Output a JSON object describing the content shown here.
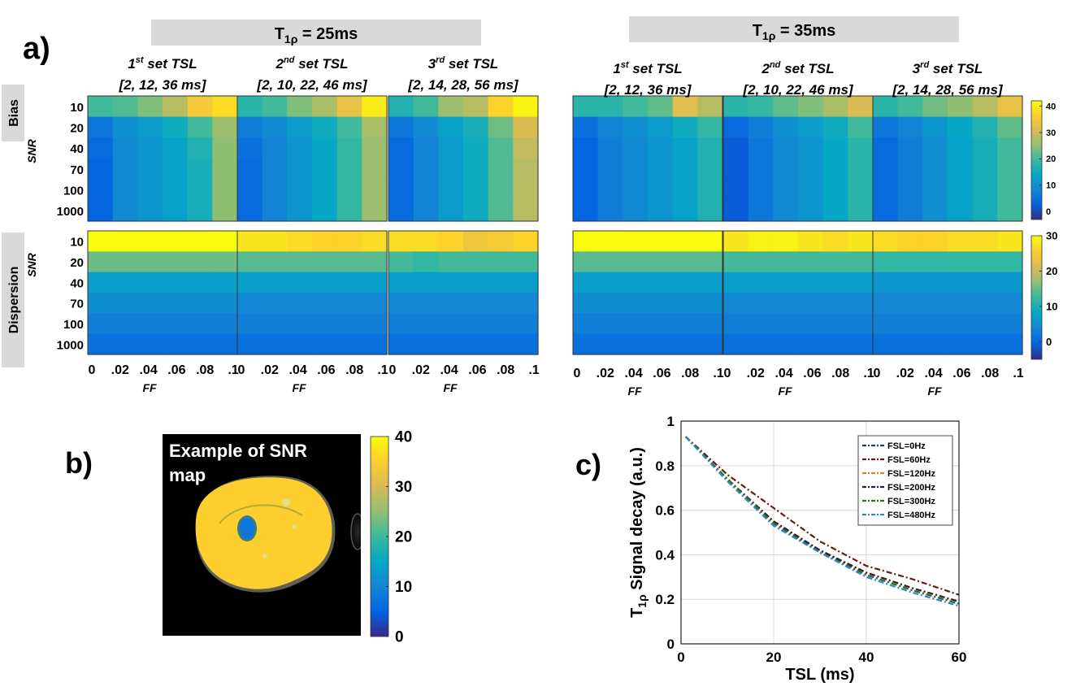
{
  "panel_labels": {
    "a": "a)",
    "b": "b)",
    "c": "c)"
  },
  "group_titles": {
    "left": {
      "prefix": "T",
      "sub": "1ρ",
      "suffix": " = 25ms"
    },
    "right": {
      "prefix": "T",
      "sub": "1ρ",
      "suffix": " = 35ms"
    }
  },
  "set_labels": [
    {
      "n": "1",
      "sup": "st",
      "rest": " set TSL",
      "tsl": "[2, 12, 36 ms]"
    },
    {
      "n": "2",
      "sup": "nd",
      "rest": " set TSL",
      "tsl": "[2, 10, 22, 46 ms]"
    },
    {
      "n": "3",
      "sup": "rd",
      "rest": " set TSL",
      "tsl": "[2, 14, 28, 56 ms]"
    }
  ],
  "row_labels": {
    "bias": "Bias",
    "dispersion": "Dispersion"
  },
  "snr_axis_label": "SNR",
  "ff_axis_label": "FF",
  "snr_ticks": [
    "10",
    "20",
    "40",
    "70",
    "100",
    "1000"
  ],
  "ff_ticks": [
    "0",
    ".02",
    ".04",
    ".06",
    ".08",
    ".1"
  ],
  "colorbars": {
    "bias": {
      "min": -3,
      "max": 42,
      "ticks": [
        "40",
        "30",
        "20",
        "10",
        "0"
      ]
    },
    "dispersion": {
      "min": -5,
      "max": 30,
      "ticks": [
        "30",
        "20",
        "10",
        "0"
      ]
    },
    "snr_map": {
      "min": 0,
      "max": 40,
      "ticks": [
        "40",
        "30",
        "20",
        "10",
        "0"
      ]
    }
  },
  "snr_map": {
    "title": "Example of SNR map",
    "uniform_snr_value": 35,
    "lesion_snr_value": 8
  },
  "colors": {
    "parula": [
      "#352a87",
      "#0363e1",
      "#1485d4",
      "#06a7c6",
      "#38b99e",
      "#92bf73",
      "#d9ba56",
      "#fcce2e",
      "#f9fb0e"
    ],
    "group_title_bg": "#d9d9d9",
    "row_label_bg": "#d9d9d9"
  },
  "chart_data": [
    {
      "type": "heatmap",
      "title": "Bias, T1ρ = 25ms",
      "x": [
        0,
        0.02,
        0.04,
        0.06,
        0.08,
        0.1
      ],
      "y": [
        10,
        20,
        40,
        70,
        100,
        1000
      ],
      "xlabel": "FF",
      "ylabel": "SNR",
      "sets": [
        [
          [
            20,
            21,
            24,
            28,
            35,
            38
          ],
          [
            6,
            10,
            12,
            15,
            20,
            26
          ],
          [
            4,
            9,
            11,
            13,
            17,
            25
          ],
          [
            3,
            9,
            11,
            13,
            16,
            25
          ],
          [
            3,
            9,
            11,
            13,
            16,
            25
          ],
          [
            3,
            9,
            11,
            13,
            16,
            25
          ]
        ],
        [
          [
            18,
            20,
            24,
            27,
            33,
            40
          ],
          [
            7,
            9,
            12,
            15,
            20,
            27
          ],
          [
            5,
            8,
            11,
            14,
            19,
            26
          ],
          [
            4,
            8,
            11,
            14,
            19,
            26
          ],
          [
            4,
            8,
            11,
            14,
            19,
            26
          ],
          [
            4,
            8,
            11,
            14,
            19,
            26
          ]
        ],
        [
          [
            17,
            20,
            26,
            28,
            37,
            41
          ],
          [
            6,
            9,
            13,
            16,
            23,
            31
          ],
          [
            4,
            8,
            12,
            15,
            21,
            29
          ],
          [
            4,
            8,
            12,
            15,
            21,
            28
          ],
          [
            4,
            8,
            12,
            15,
            21,
            28
          ],
          [
            4,
            8,
            12,
            15,
            21,
            28
          ]
        ]
      ]
    },
    {
      "type": "heatmap",
      "title": "Bias, T1ρ = 35ms",
      "x": [
        0,
        0.02,
        0.04,
        0.06,
        0.08,
        0.1
      ],
      "y": [
        10,
        20,
        40,
        70,
        100,
        1000
      ],
      "xlabel": "FF",
      "ylabel": "SNR",
      "sets": [
        [
          [
            18,
            18,
            20,
            22,
            32,
            28
          ],
          [
            5,
            8,
            10,
            12,
            15,
            19
          ],
          [
            3,
            7,
            9,
            11,
            13,
            17
          ],
          [
            3,
            7,
            9,
            11,
            13,
            17
          ],
          [
            3,
            7,
            9,
            11,
            13,
            17
          ],
          [
            3,
            7,
            9,
            11,
            13,
            17
          ]
        ],
        [
          [
            18,
            19,
            22,
            24,
            27,
            31
          ],
          [
            4,
            7,
            10,
            12,
            15,
            20
          ],
          [
            2,
            6,
            9,
            11,
            14,
            18
          ],
          [
            2,
            6,
            9,
            11,
            14,
            18
          ],
          [
            2,
            6,
            9,
            11,
            14,
            18
          ],
          [
            2,
            6,
            9,
            11,
            14,
            18
          ]
        ],
        [
          [
            18,
            20,
            23,
            25,
            28,
            33
          ],
          [
            6,
            8,
            11,
            14,
            17,
            22
          ],
          [
            4,
            7,
            10,
            13,
            16,
            20
          ],
          [
            4,
            7,
            10,
            13,
            16,
            20
          ],
          [
            4,
            7,
            10,
            13,
            16,
            20
          ],
          [
            4,
            7,
            10,
            13,
            16,
            20
          ]
        ]
      ]
    },
    {
      "type": "heatmap",
      "title": "Dispersion, T1ρ = 25ms",
      "x": [
        0,
        0.02,
        0.04,
        0.06,
        0.08,
        0.1
      ],
      "y": [
        10,
        20,
        40,
        70,
        100,
        1000
      ],
      "xlabel": "FF",
      "ylabel": "SNR",
      "sets": [
        [
          [
            30,
            30,
            30,
            30,
            30,
            30
          ],
          [
            15,
            15,
            15,
            15,
            15,
            15
          ],
          [
            7,
            7,
            7,
            7,
            7,
            7
          ],
          [
            5,
            5,
            5,
            5,
            5,
            5
          ],
          [
            3,
            3,
            3,
            3,
            3,
            3
          ],
          [
            1,
            1,
            1,
            1,
            1,
            1
          ]
        ],
        [
          [
            28,
            28,
            27,
            26,
            26,
            27
          ],
          [
            14,
            14,
            14,
            14,
            14,
            14
          ],
          [
            7,
            7,
            7,
            7,
            7,
            7
          ],
          [
            4,
            4,
            4,
            4,
            4,
            4
          ],
          [
            3,
            3,
            3,
            3,
            3,
            3
          ],
          [
            1,
            1,
            1,
            1,
            1,
            1
          ]
        ],
        [
          [
            27,
            27,
            26,
            24,
            25,
            26
          ],
          [
            13,
            12,
            13,
            13,
            13,
            13
          ],
          [
            7,
            7,
            7,
            7,
            7,
            7
          ],
          [
            4,
            4,
            4,
            4,
            4,
            4
          ],
          [
            3,
            3,
            3,
            3,
            3,
            3
          ],
          [
            1,
            1,
            1,
            1,
            1,
            1
          ]
        ]
      ]
    },
    {
      "type": "heatmap",
      "title": "Dispersion, T1ρ = 35ms",
      "x": [
        0,
        0.02,
        0.04,
        0.06,
        0.08,
        0.1
      ],
      "y": [
        10,
        20,
        40,
        70,
        100,
        1000
      ],
      "xlabel": "FF",
      "ylabel": "SNR",
      "sets": [
        [
          [
            30,
            30,
            30,
            30,
            30,
            30
          ],
          [
            14,
            14,
            14,
            14,
            14,
            14
          ],
          [
            7,
            7,
            7,
            7,
            7,
            7
          ],
          [
            5,
            5,
            5,
            5,
            5,
            5
          ],
          [
            3,
            3,
            3,
            3,
            3,
            3
          ],
          [
            1,
            1,
            1,
            1,
            1,
            1
          ]
        ],
        [
          [
            28,
            29,
            29,
            28,
            27,
            28
          ],
          [
            13,
            13,
            13,
            13,
            13,
            13
          ],
          [
            7,
            7,
            7,
            7,
            7,
            7
          ],
          [
            4,
            4,
            4,
            4,
            4,
            4
          ],
          [
            3,
            3,
            3,
            3,
            3,
            3
          ],
          [
            1,
            1,
            1,
            1,
            1,
            1
          ]
        ],
        [
          [
            27,
            26,
            26,
            27,
            27,
            28
          ],
          [
            12,
            12,
            12,
            12,
            12,
            12
          ],
          [
            6,
            6,
            6,
            6,
            6,
            6
          ],
          [
            4,
            4,
            4,
            4,
            4,
            4
          ],
          [
            3,
            3,
            3,
            3,
            3,
            3
          ],
          [
            1,
            1,
            1,
            1,
            1,
            1
          ]
        ]
      ]
    },
    {
      "type": "line",
      "xlabel": "TSL (ms)",
      "ylabel_prefix": "T",
      "ylabel_sub": "1ρ",
      "ylabel_suffix": " Signal decay (a.u.)",
      "xlim": [
        0,
        60
      ],
      "ylim": [
        0,
        1
      ],
      "xticks": [
        0,
        20,
        40,
        60
      ],
      "yticks": [
        0,
        0.2,
        0.4,
        0.6,
        0.8,
        1
      ],
      "ytick_labels": [
        "0",
        "0.2",
        "0.4",
        "0.6",
        "0.8",
        "1"
      ],
      "grid": true,
      "legend_position": "top-right",
      "series": [
        {
          "name": "FSL=0Hz",
          "color": "#1f3b5a",
          "x": [
            1,
            10,
            20,
            30,
            40,
            50,
            60
          ],
          "y": [
            0.93,
            0.74,
            0.54,
            0.42,
            0.31,
            0.24,
            0.18
          ]
        },
        {
          "name": "FSL=60Hz",
          "color": "#5a1f14",
          "x": [
            1,
            10,
            20,
            30,
            40,
            50,
            60
          ],
          "y": [
            0.93,
            0.76,
            0.61,
            0.46,
            0.35,
            0.29,
            0.22
          ]
        },
        {
          "name": "FSL=120Hz",
          "color": "#c98a1f",
          "x": [
            1,
            10,
            20,
            30,
            40,
            50,
            60
          ],
          "y": [
            0.93,
            0.74,
            0.55,
            0.42,
            0.32,
            0.25,
            0.19
          ]
        },
        {
          "name": "FSL=200Hz",
          "color": "#2a1f3b",
          "x": [
            1,
            10,
            20,
            30,
            40,
            50,
            60
          ],
          "y": [
            0.93,
            0.74,
            0.55,
            0.42,
            0.32,
            0.25,
            0.19
          ]
        },
        {
          "name": "FSL=300Hz",
          "color": "#3b6b1f",
          "x": [
            1,
            10,
            20,
            30,
            40,
            50,
            60
          ],
          "y": [
            0.93,
            0.74,
            0.54,
            0.41,
            0.31,
            0.24,
            0.18
          ]
        },
        {
          "name": "FSL=480Hz",
          "color": "#2a86c8",
          "x": [
            1,
            10,
            20,
            30,
            40,
            50,
            60
          ],
          "y": [
            0.93,
            0.73,
            0.53,
            0.41,
            0.3,
            0.23,
            0.17
          ]
        }
      ]
    }
  ]
}
